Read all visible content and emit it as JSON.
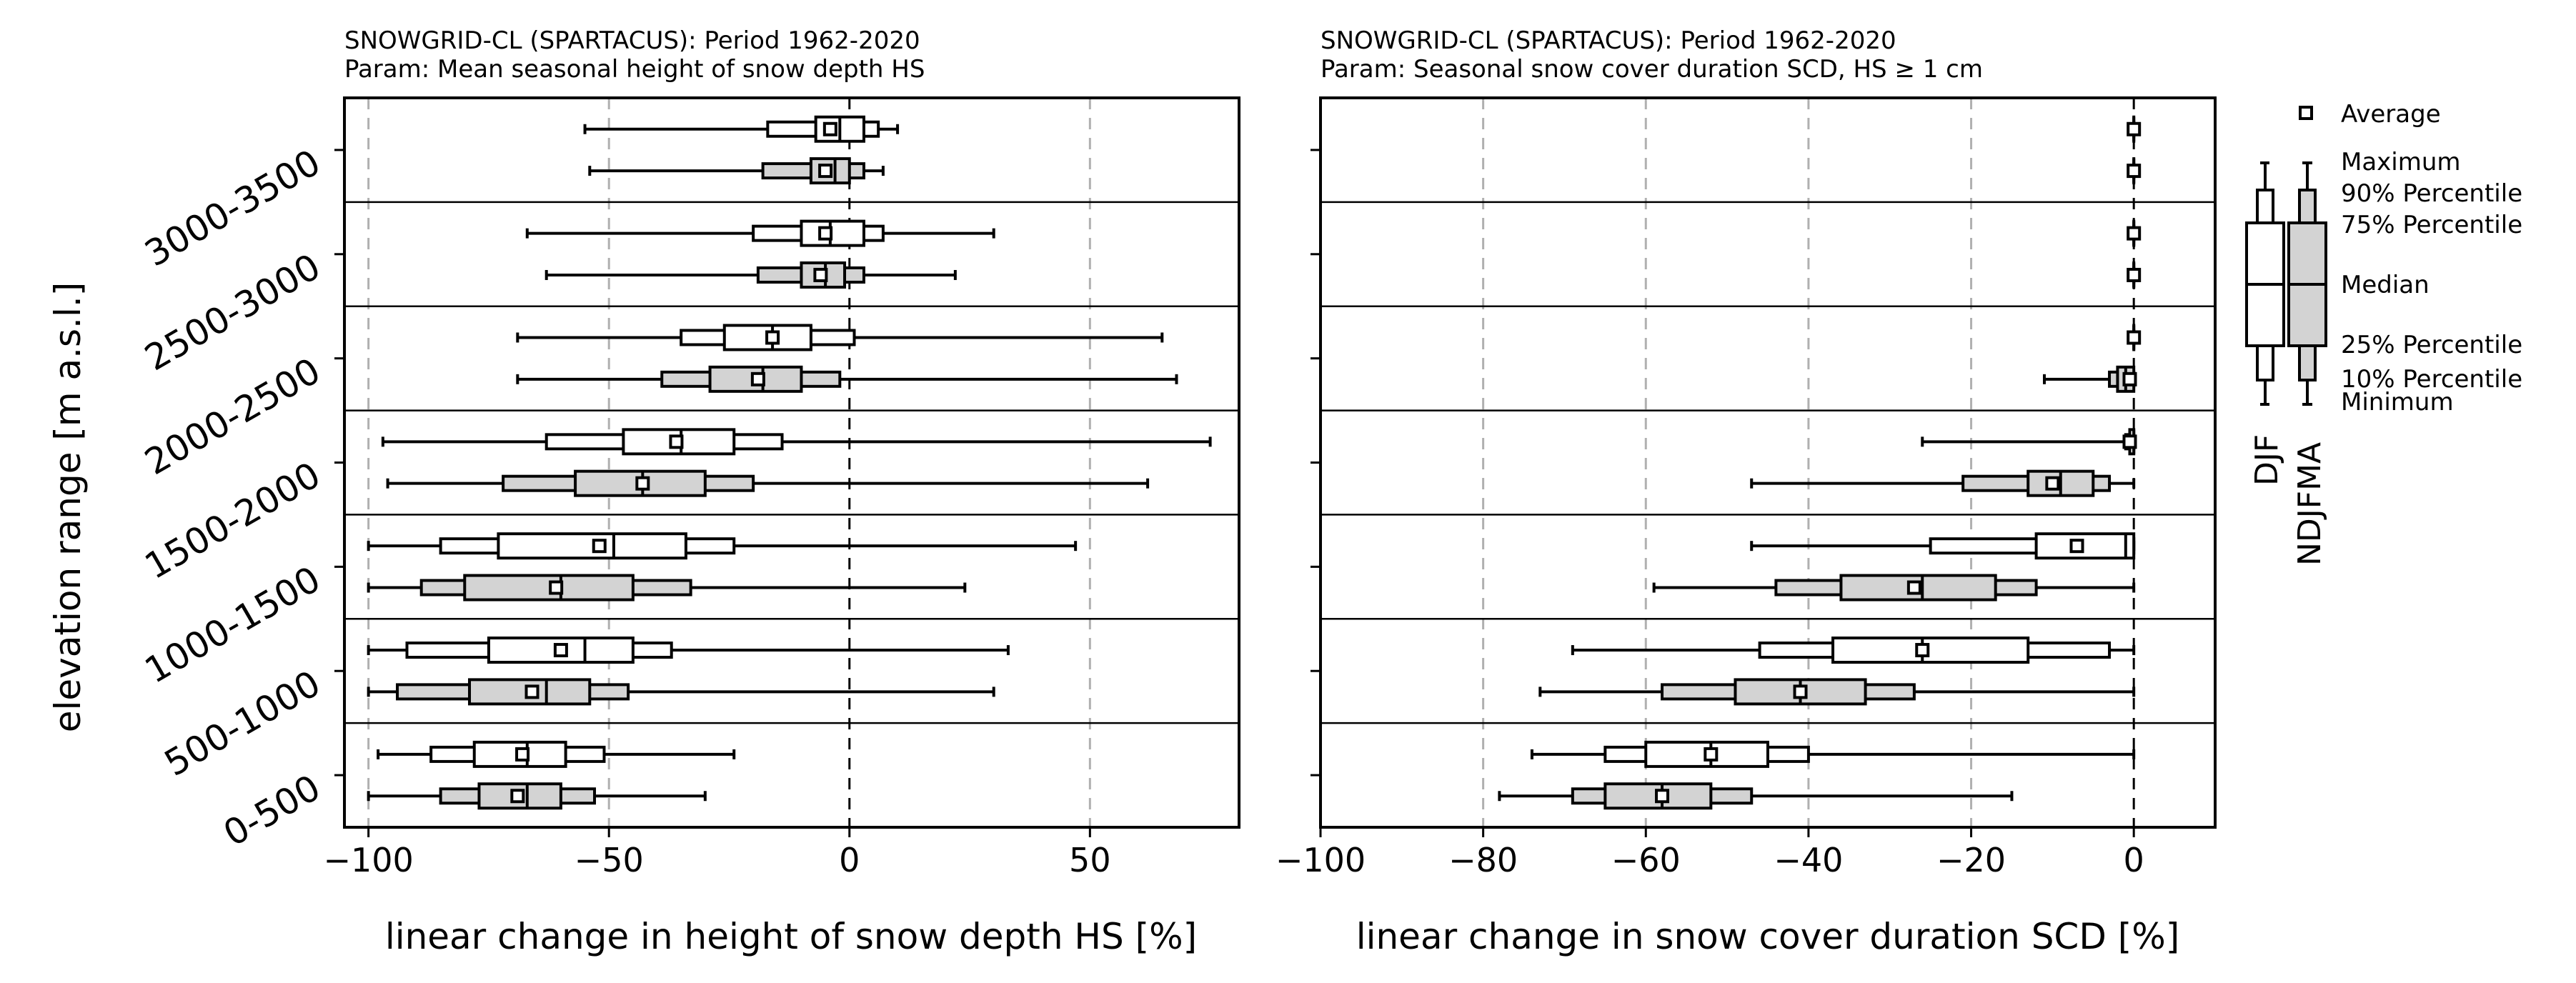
{
  "y_axis_label": "elevation range [m a.s.l.]",
  "elevation_ranges": [
    "0-500",
    "500-1000",
    "1000-1500",
    "1500-2000",
    "2000-2500",
    "2500-3000",
    "3000-3500"
  ],
  "colors": {
    "djf_fill": "#ffffff",
    "ndjfma_fill": "#d3d3d3",
    "stroke": "#000000",
    "grid": "#b0b0b0",
    "zero_line": "#000000"
  },
  "chart_data": [
    {
      "type": "boxplot",
      "orientation": "horizontal",
      "title_line1": "SNOWGRID-CL (SPARTACUS): Period 1962-2020",
      "title_line2": "Param: Mean seasonal height of snow depth HS",
      "xlabel": "linear change in height of snow depth HS [%]",
      "xlim": [
        -105,
        81
      ],
      "xticks": [
        -100,
        -50,
        0,
        50
      ],
      "xtick_labels": [
        "−100",
        "−50",
        "0",
        "50"
      ],
      "categories": [
        "0-500",
        "500-1000",
        "1000-1500",
        "1500-2000",
        "2000-2500",
        "2500-3000",
        "3000-3500"
      ],
      "series": [
        {
          "name": "DJF",
          "stats": [
            {
              "min": -98,
              "p10": -87,
              "p25": -78,
              "median": -67,
              "p75": -59,
              "p90": -51,
              "max": -24,
              "mean": -68
            },
            {
              "min": -100,
              "p10": -92,
              "p25": -75,
              "median": -55,
              "p75": -45,
              "p90": -37,
              "max": 33,
              "mean": -60
            },
            {
              "min": -100,
              "p10": -85,
              "p25": -73,
              "median": -49,
              "p75": -34,
              "p90": -24,
              "max": 47,
              "mean": -52
            },
            {
              "min": -97,
              "p10": -63,
              "p25": -47,
              "median": -35,
              "p75": -24,
              "p90": -14,
              "max": 75,
              "mean": -36
            },
            {
              "min": -69,
              "p10": -35,
              "p25": -26,
              "median": -16,
              "p75": -8,
              "p90": 1,
              "max": 65,
              "mean": -16
            },
            {
              "min": -67,
              "p10": -20,
              "p25": -10,
              "median": -4,
              "p75": 3,
              "p90": 7,
              "max": 30,
              "mean": -5
            },
            {
              "min": -55,
              "p10": -17,
              "p25": -7,
              "median": -2,
              "p75": 3,
              "p90": 6,
              "max": 10,
              "mean": -4
            }
          ]
        },
        {
          "name": "NDJFMA",
          "stats": [
            {
              "min": -100,
              "p10": -85,
              "p25": -77,
              "median": -67,
              "p75": -60,
              "p90": -53,
              "max": -30,
              "mean": -69
            },
            {
              "min": -100,
              "p10": -94,
              "p25": -79,
              "median": -63,
              "p75": -54,
              "p90": -46,
              "max": 30,
              "mean": -66
            },
            {
              "min": -100,
              "p10": -89,
              "p25": -80,
              "median": -60,
              "p75": -45,
              "p90": -33,
              "max": 24,
              "mean": -61
            },
            {
              "min": -96,
              "p10": -72,
              "p25": -57,
              "median": -43,
              "p75": -30,
              "p90": -20,
              "max": 62,
              "mean": -43
            },
            {
              "min": -69,
              "p10": -39,
              "p25": -29,
              "median": -18,
              "p75": -10,
              "p90": -2,
              "max": 68,
              "mean": -19
            },
            {
              "min": -63,
              "p10": -19,
              "p25": -10,
              "median": -5,
              "p75": -1,
              "p90": 3,
              "max": 22,
              "mean": -6
            },
            {
              "min": -54,
              "p10": -18,
              "p25": -8,
              "median": -3,
              "p75": 0,
              "p90": 3,
              "max": 7,
              "mean": -5
            }
          ]
        }
      ]
    },
    {
      "type": "boxplot",
      "orientation": "horizontal",
      "title_line1": "SNOWGRID-CL (SPARTACUS): Period 1962-2020",
      "title_line2": "Param: Seasonal snow cover duration SCD, HS ≥ 1 cm",
      "xlabel": "linear change in snow cover duration SCD [%]",
      "xlim": [
        -100,
        10
      ],
      "xticks": [
        -100,
        -80,
        -60,
        -40,
        -20,
        0
      ],
      "xtick_labels": [
        "−100",
        "−80",
        "−60",
        "−40",
        "−20",
        "0"
      ],
      "categories": [
        "0-500",
        "500-1000",
        "1000-1500",
        "1500-2000",
        "2000-2500",
        "2500-3000",
        "3000-3500"
      ],
      "series": [
        {
          "name": "DJF",
          "stats": [
            {
              "min": -74,
              "p10": -65,
              "p25": -60,
              "median": -52,
              "p75": -45,
              "p90": -40,
              "max": 0,
              "mean": -52
            },
            {
              "min": -69,
              "p10": -46,
              "p25": -37,
              "median": -26,
              "p75": -13,
              "p90": -3,
              "max": 0,
              "mean": -26
            },
            {
              "min": -47,
              "p10": -25,
              "p25": -12,
              "median": -1,
              "p75": 0,
              "p90": 0,
              "max": 0,
              "mean": -7
            },
            {
              "min": -26,
              "p10": -1,
              "p25": -0.5,
              "median": 0,
              "p75": 0,
              "p90": 0,
              "max": 0,
              "mean": -0.5
            },
            {
              "min": 0,
              "p10": 0,
              "p25": 0,
              "median": 0,
              "p75": 0,
              "p90": 0,
              "max": 0,
              "mean": 0
            },
            {
              "min": 0,
              "p10": 0,
              "p25": 0,
              "median": 0,
              "p75": 0,
              "p90": 0,
              "max": 0,
              "mean": 0
            },
            {
              "min": 0,
              "p10": 0,
              "p25": 0,
              "median": 0,
              "p75": 0,
              "p90": 0,
              "max": 0,
              "mean": 0
            }
          ]
        },
        {
          "name": "NDJFMA",
          "stats": [
            {
              "min": -78,
              "p10": -69,
              "p25": -65,
              "median": -58,
              "p75": -52,
              "p90": -47,
              "max": -15,
              "mean": -58
            },
            {
              "min": -73,
              "p10": -58,
              "p25": -49,
              "median": -41,
              "p75": -33,
              "p90": -27,
              "max": 0,
              "mean": -41
            },
            {
              "min": -59,
              "p10": -44,
              "p25": -36,
              "median": -26,
              "p75": -17,
              "p90": -12,
              "max": 0,
              "mean": -27
            },
            {
              "min": -47,
              "p10": -21,
              "p25": -13,
              "median": -9,
              "p75": -5,
              "p90": -3,
              "max": 0,
              "mean": -10
            },
            {
              "min": -11,
              "p10": -3,
              "p25": -2,
              "median": -1,
              "p75": 0,
              "p90": 0,
              "max": 0,
              "mean": -0.5
            },
            {
              "min": 0,
              "p10": 0,
              "p25": 0,
              "median": 0,
              "p75": 0,
              "p90": 0,
              "max": 0,
              "mean": 0
            },
            {
              "min": 0,
              "p10": 0,
              "p25": 0,
              "median": 0,
              "p75": 0,
              "p90": 0,
              "max": 0,
              "mean": 0
            }
          ]
        }
      ]
    }
  ],
  "legend": {
    "average_label": "Average",
    "stat_labels": [
      "Maximum",
      "90% Percentile",
      "75% Percentile",
      "Median",
      "25% Percentile",
      "10% Percentile",
      "Minimum"
    ],
    "series_labels": [
      "DJF",
      "NDJFMA"
    ]
  }
}
